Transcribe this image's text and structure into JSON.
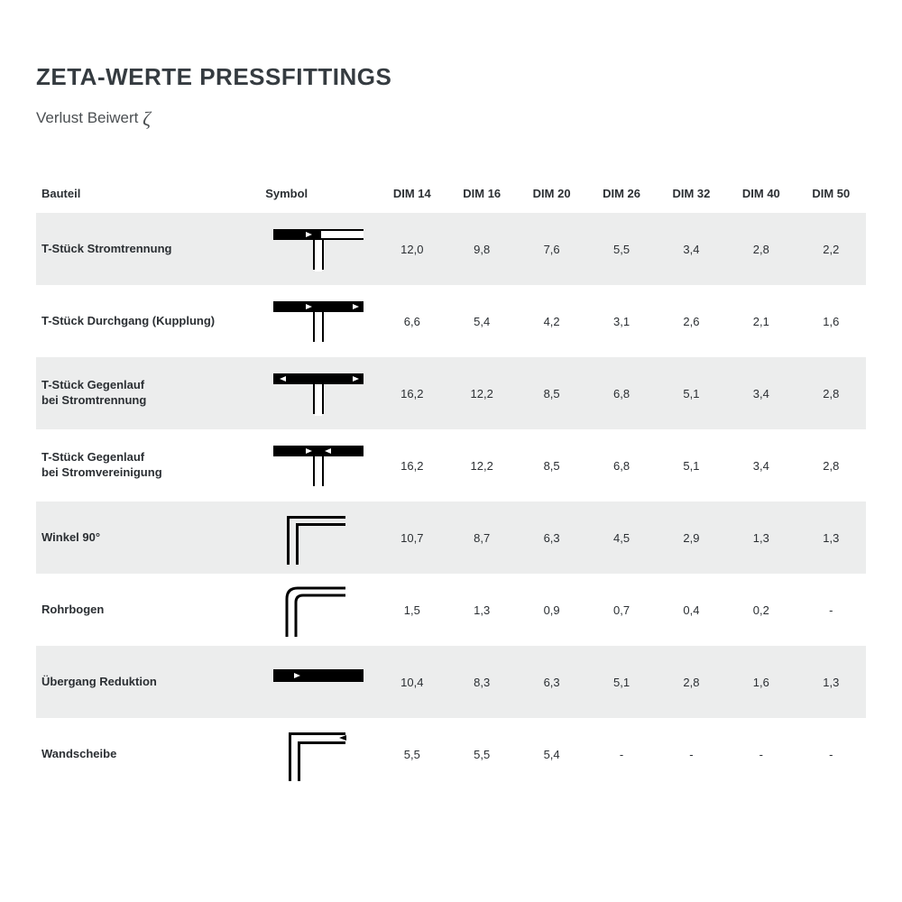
{
  "title": "ZETA-WERTE PRESSFITTINGS",
  "subtitle_prefix": "Verlust Beiwert ",
  "subtitle_symbol": "ζ",
  "colors": {
    "text": "#2b2f33",
    "row_shade": "#eceded",
    "background": "#ffffff",
    "symbol_stroke": "#000000"
  },
  "table": {
    "columns": [
      "Bauteil",
      "Symbol",
      "DIM 14",
      "DIM 16",
      "DIM 20",
      "DIM 26",
      "DIM 32",
      "DIM 40",
      "DIM 50"
    ],
    "rows": [
      {
        "name": "T-Stück Stromtrennung",
        "symbol": "tee-split",
        "values": [
          "12,0",
          "9,8",
          "7,6",
          "5,5",
          "3,4",
          "2,8",
          "2,2"
        ]
      },
      {
        "name": "T-Stück Durchgang (Kupplung)",
        "symbol": "tee-through",
        "values": [
          "6,6",
          "5,4",
          "4,2",
          "3,1",
          "2,6",
          "2,1",
          "1,6"
        ]
      },
      {
        "name": "T-Stück Gegenlauf\nbei Stromtrennung",
        "symbol": "tee-counter-split",
        "values": [
          "16,2",
          "12,2",
          "8,5",
          "6,8",
          "5,1",
          "3,4",
          "2,8"
        ]
      },
      {
        "name": "T-Stück Gegenlauf\nbei Stromvereinigung",
        "symbol": "tee-counter-merge",
        "values": [
          "16,2",
          "12,2",
          "8,5",
          "6,8",
          "5,1",
          "3,4",
          "2,8"
        ]
      },
      {
        "name": "Winkel 90°",
        "symbol": "elbow-sharp",
        "values": [
          "10,7",
          "8,7",
          "6,3",
          "4,5",
          "2,9",
          "1,3",
          "1,3"
        ]
      },
      {
        "name": "Rohrbogen",
        "symbol": "elbow-round",
        "values": [
          "1,5",
          "1,3",
          "0,9",
          "0,7",
          "0,4",
          "0,2",
          "-"
        ]
      },
      {
        "name": "Übergang Reduktion",
        "symbol": "reducer",
        "values": [
          "10,4",
          "8,3",
          "6,3",
          "5,1",
          "2,8",
          "1,6",
          "1,3"
        ]
      },
      {
        "name": "Wandscheibe",
        "symbol": "wall-elbow",
        "values": [
          "5,5",
          "5,5",
          "5,4",
          "-",
          "-",
          "-",
          "-"
        ]
      }
    ]
  }
}
